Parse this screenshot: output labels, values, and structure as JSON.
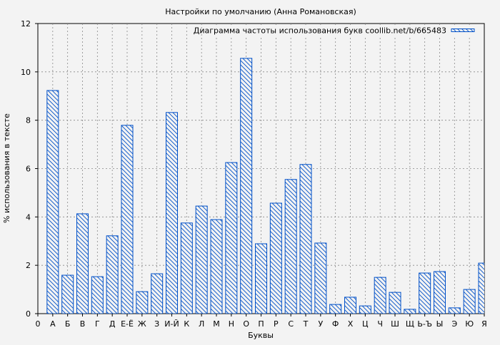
{
  "chart_data": {
    "type": "bar",
    "title": "Настройки по умолчанию (Анна Романовская)",
    "xlabel": "Буквы",
    "ylabel": "% использования в тексте",
    "ylim": [
      0,
      12
    ],
    "yticks": [
      0,
      2,
      4,
      6,
      8,
      10,
      12
    ],
    "grid": true,
    "legend_position": "top-right",
    "x_tick_labels": [
      "0",
      "А",
      "Б",
      "В",
      "Г",
      "Д",
      "Е-Ё",
      "Ж",
      "З",
      "И-Й",
      "К",
      "Л",
      "М",
      "Н",
      "О",
      "П",
      "Р",
      "С",
      "Т",
      "У",
      "Ф",
      "Х",
      "Ц",
      "Ч",
      "Ш",
      "Щ",
      "Ь-Ъ",
      "Ы",
      "Э",
      "Ю",
      "Я"
    ],
    "categories": [
      "А",
      "Б",
      "В",
      "Г",
      "Д",
      "Е-Ё",
      "Ж",
      "З",
      "И-Й",
      "К",
      "Л",
      "М",
      "Н",
      "О",
      "П",
      "Р",
      "С",
      "Т",
      "У",
      "Ф",
      "Х",
      "Ц",
      "Ч",
      "Ш",
      "Щ",
      "Ь-Ъ",
      "Ы",
      "Э",
      "Ю",
      "Я"
    ],
    "series": [
      {
        "name": "Диаграмма частоты использования букв coollib.net/b/665483",
        "color": "#0050c8",
        "pattern": "diagonal-hatch",
        "values": [
          9.23,
          1.59,
          4.13,
          1.53,
          3.22,
          7.79,
          0.91,
          1.65,
          8.32,
          3.75,
          4.45,
          3.89,
          6.25,
          10.56,
          2.89,
          4.57,
          5.55,
          6.17,
          2.92,
          0.38,
          0.68,
          0.32,
          1.5,
          0.88,
          0.18,
          1.68,
          1.74,
          0.24,
          1.0,
          2.09
        ]
      }
    ]
  }
}
